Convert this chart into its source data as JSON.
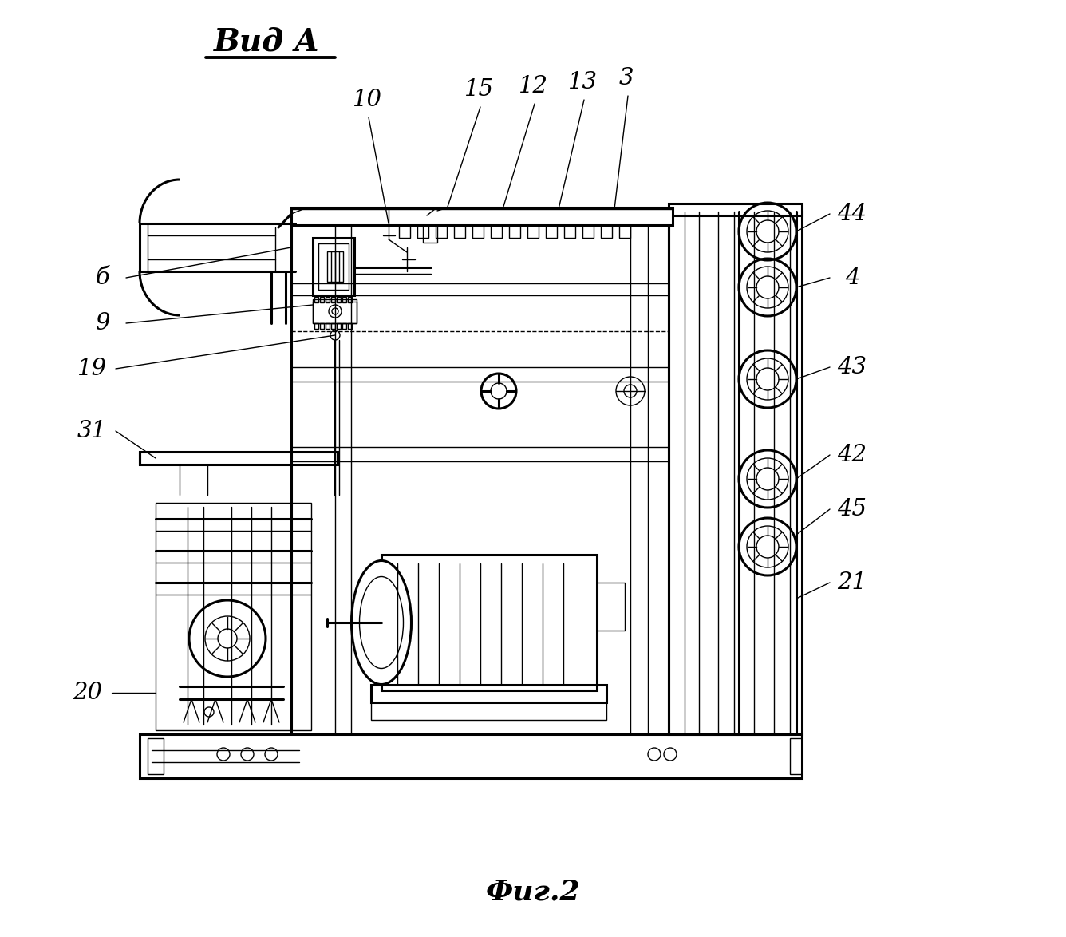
{
  "background": "#ffffff",
  "view_label": "Вид A",
  "fig_label": "Фиг.2",
  "lw_main": 2.2,
  "lw_med": 1.5,
  "lw_thin": 1.0
}
